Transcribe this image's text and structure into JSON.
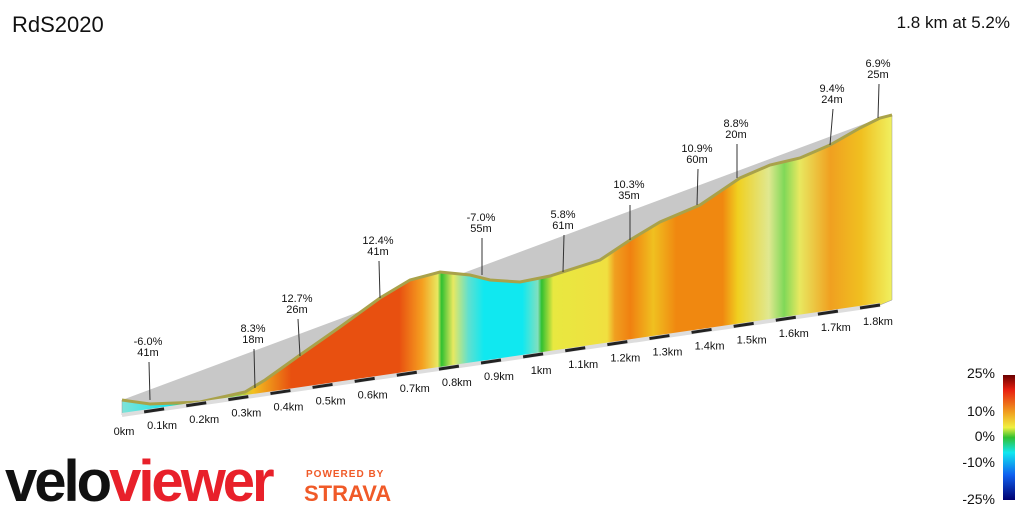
{
  "header": {
    "title": "RdS2020",
    "summary": "1.8 km at 5.2%"
  },
  "annotations": [
    {
      "grade": "-6.0%",
      "length": "41m"
    },
    {
      "grade": "8.3%",
      "length": "18m"
    },
    {
      "grade": "12.7%",
      "length": "26m"
    },
    {
      "grade": "12.4%",
      "length": "41m"
    },
    {
      "grade": "-7.0%",
      "length": "55m"
    },
    {
      "grade": "5.8%",
      "length": "61m"
    },
    {
      "grade": "10.3%",
      "length": "35m"
    },
    {
      "grade": "10.9%",
      "length": "60m"
    },
    {
      "grade": "8.8%",
      "length": "20m"
    },
    {
      "grade": "9.4%",
      "length": "24m"
    },
    {
      "grade": "6.9%",
      "length": "25m"
    }
  ],
  "distance_labels": [
    "0km",
    "0.1km",
    "0.2km",
    "0.3km",
    "0.4km",
    "0.5km",
    "0.6km",
    "0.7km",
    "0.8km",
    "0.9km",
    "1km",
    "1.1km",
    "1.2km",
    "1.3km",
    "1.4km",
    "1.5km",
    "1.6km",
    "1.7km",
    "1.8km"
  ],
  "legend": {
    "labels": [
      "25%",
      "10%",
      "0%",
      "-10%",
      "-25%"
    ]
  },
  "branding": {
    "logo_dark": "velo",
    "logo_red": "viewer",
    "powered_by": "POWERED BY",
    "strava": "STRAVA"
  }
}
